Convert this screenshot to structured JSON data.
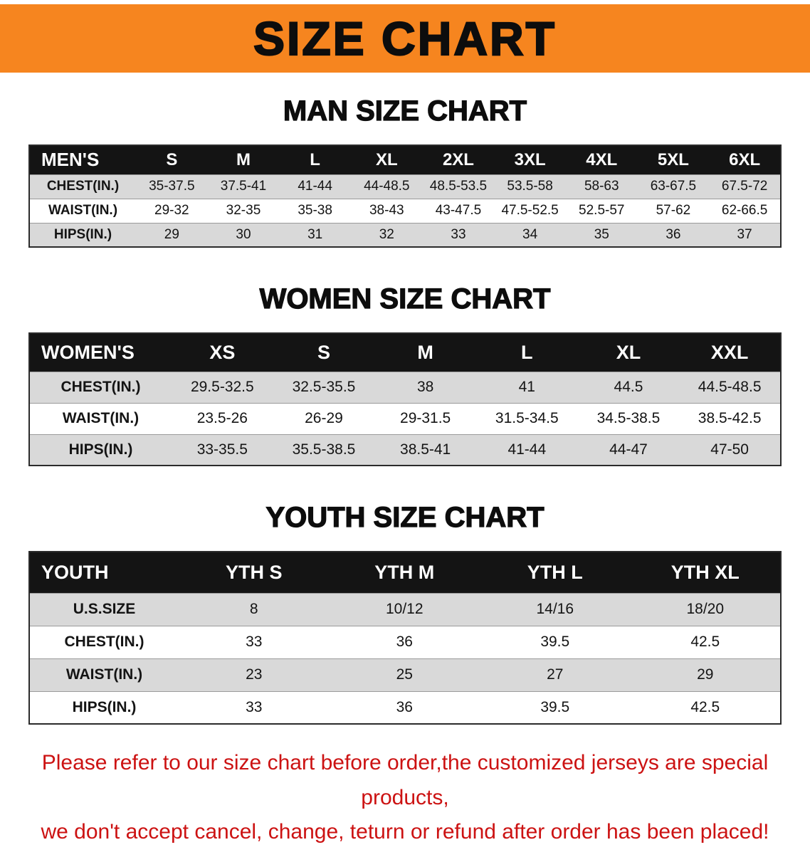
{
  "banner": {
    "title": "SIZE CHART",
    "bg_color": "#f6851f",
    "text_color": "#0d0d0d"
  },
  "sections": [
    {
      "heading": "MAN SIZE CHART",
      "table": {
        "title": "MEN'S",
        "header": [
          "MEN'S",
          "S",
          "M",
          "L",
          "XL",
          "2XL",
          "3XL",
          "4XL",
          "5XL",
          "6XL"
        ],
        "rows": [
          [
            "CHEST(IN.)",
            "35-37.5",
            "37.5-41",
            "41-44",
            "44-48.5",
            "48.5-53.5",
            "53.5-58",
            "58-63",
            "63-67.5",
            "67.5-72"
          ],
          [
            "WAIST(IN.)",
            "29-32",
            "32-35",
            "35-38",
            "38-43",
            "43-47.5",
            "47.5-52.5",
            "52.5-57",
            "57-62",
            "62-66.5"
          ],
          [
            "HIPS(IN.)",
            "29",
            "30",
            "31",
            "32",
            "33",
            "34",
            "35",
            "36",
            "37"
          ]
        ]
      }
    },
    {
      "heading": "WOMEN SIZE CHART",
      "table": {
        "title": "WOMEN'S",
        "header": [
          "WOMEN'S",
          "XS",
          "S",
          "M",
          "L",
          "XL",
          "XXL"
        ],
        "rows": [
          [
            "CHEST(IN.)",
            "29.5-32.5",
            "32.5-35.5",
            "38",
            "41",
            "44.5",
            "44.5-48.5"
          ],
          [
            "WAIST(IN.)",
            "23.5-26",
            "26-29",
            "29-31.5",
            "31.5-34.5",
            "34.5-38.5",
            "38.5-42.5"
          ],
          [
            "HIPS(IN.)",
            "33-35.5",
            "35.5-38.5",
            "38.5-41",
            "41-44",
            "44-47",
            "47-50"
          ]
        ]
      }
    },
    {
      "heading": "YOUTH SIZE CHART",
      "table": {
        "title": "YOUTH",
        "header": [
          "YOUTH",
          "YTH S",
          "YTH M",
          "YTH L",
          "YTH XL"
        ],
        "rows": [
          [
            "U.S.SIZE",
            "8",
            "10/12",
            "14/16",
            "18/20"
          ],
          [
            "CHEST(IN.)",
            "33",
            "36",
            "39.5",
            "42.5"
          ],
          [
            "WAIST(IN.)",
            "23",
            "25",
            "27",
            "29"
          ],
          [
            "HIPS(IN.)",
            "33",
            "36",
            "39.5",
            "42.5"
          ]
        ]
      }
    }
  ],
  "disclaimer": {
    "line1": "Please refer to our size chart before order,the customized jerseys are special products,",
    "line2": "we don't accept cancel, change, teturn or refund after order has been placed!",
    "text_color": "#cc1212"
  },
  "colors": {
    "table_header_bg": "#141414",
    "table_header_text": "#ffffff",
    "row_alt_bg": "#d9d9d9",
    "row_bg": "#ffffff"
  }
}
